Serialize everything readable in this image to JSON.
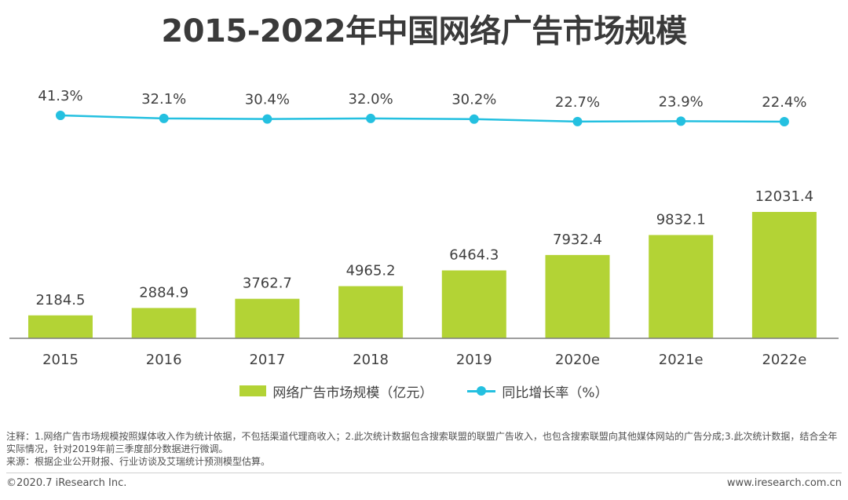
{
  "title": "2015-2022年中国网络广告市场规模",
  "colors": {
    "bar": "#b3d335",
    "line": "#24c0e0",
    "axis": "#7f7f7f",
    "label": "#404040"
  },
  "chart_data": {
    "type": "bar",
    "title": "2015-2022年中国网络广告市场规模",
    "categories": [
      "2015",
      "2016",
      "2017",
      "2018",
      "2019",
      "2020e",
      "2021e",
      "2022e"
    ],
    "series": [
      {
        "name": "网络广告市场规模（亿元）",
        "type": "bar",
        "values": [
          2184.5,
          2884.9,
          3762.7,
          4965.2,
          6464.3,
          7932.4,
          9832.1,
          12031.4
        ],
        "labels": [
          "2184.5",
          "2884.9",
          "3762.7",
          "4965.2",
          "6464.3",
          "7932.4",
          "9832.1",
          "12031.4"
        ]
      },
      {
        "name": "同比增长率（%）",
        "type": "line",
        "values": [
          41.3,
          32.1,
          30.4,
          32.0,
          30.2,
          22.7,
          23.9,
          22.4
        ],
        "labels": [
          "41.3%",
          "32.1%",
          "30.4%",
          "32.0%",
          "30.2%",
          "22.7%",
          "23.9%",
          "22.4%"
        ]
      }
    ],
    "xlabel": "",
    "ylabel": "",
    "ylim": [
      0,
      12031.4
    ],
    "legend": "bottom-center"
  },
  "legend": {
    "bar_label": "网络广告市场规模（亿元）",
    "line_label": "同比增长率（%）"
  },
  "notes": {
    "line1": "注释：1.网络广告市场规模按照媒体收入作为统计依据，不包括渠道代理商收入；2.此次统计数据包含搜索联盟的联盟广告收入，也包含搜索联盟向其他媒体网站的广告分成;3.此次统计数据，结合全年实际情况，针对2019年前三季度部分数据进行微调。",
    "line2": "来源：根据企业公开财报、行业访谈及艾瑞统计预测模型估算。"
  },
  "footer": {
    "copyright": "©2020.7 iResearch Inc.",
    "website": "www.iresearch.com.cn"
  }
}
